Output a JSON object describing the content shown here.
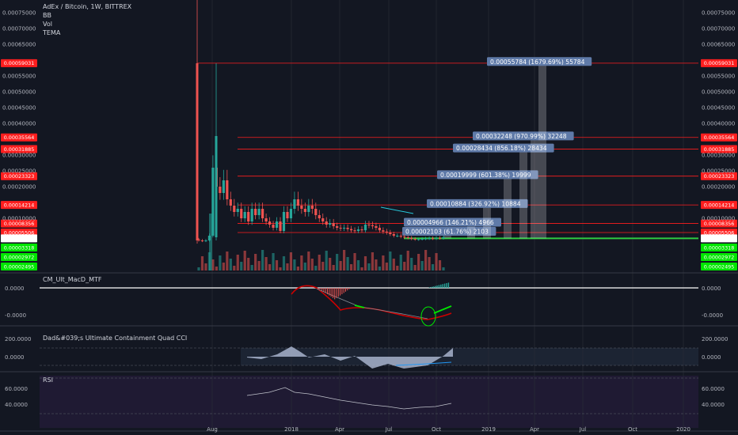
{
  "header": {
    "symbol_line": "AdEx / Bitcoin, 1W, BITTREX",
    "indicators": [
      "BB",
      "Vol",
      "TEMA"
    ]
  },
  "axis_labels": {
    "main_left": [
      "0.00075000",
      "0.00070000",
      "0.00065000",
      "0.00055000",
      "0.00050000",
      "0.00045000",
      "0.00040000",
      "0.00030000",
      "0.00025000",
      "0.00020000",
      "0.00010000"
    ],
    "main_right": [
      "0.00075000",
      "0.00070000",
      "0.00065000",
      "0.00055000",
      "0.00050000",
      "0.00045000",
      "0.00040000",
      "0.00030000",
      "0.00025000",
      "0.00020000",
      "0.00010000"
    ],
    "x_ticks": [
      "Aug",
      "2018",
      "Apr",
      "Jul",
      "Oct",
      "2019",
      "Apr",
      "Jul",
      "Oct",
      "2020"
    ]
  },
  "price_levels": {
    "red": [
      "0.00059031",
      "0.00035564",
      "0.00031885",
      "0.00023323",
      "0.00014214",
      "0.00008356",
      "0.00005506"
    ],
    "white": [
      "0.00003650"
    ],
    "green": [
      "0.00003318",
      "0.00002972",
      "0.00002495"
    ]
  },
  "targets": [
    {
      "text": "0.00002103 (61.76%) 2103",
      "value": 5.753e-05
    },
    {
      "text": "0.00004966 (146.21%) 4966",
      "value": 8.616e-05
    },
    {
      "text": "0.00010884 (326.92%) 10884",
      "value": 0.00014534
    },
    {
      "text": "0.00019999 (601.38%) 19999",
      "value": 0.00023649
    },
    {
      "text": "0.00028434 (856.18%) 28434",
      "value": 0.00032084
    },
    {
      "text": "0.00032248 (970.99%) 32248",
      "value": 0.00035898
    },
    {
      "text": "0.00055784 (1679.69%) 55784",
      "value": 0.00059434
    }
  ],
  "panes": {
    "macd": {
      "title": "CM_Ult_MacD_MTF",
      "left_labels": [
        "0.0000",
        "-0.0000"
      ],
      "right_labels": [
        "0.0000",
        "-0.0000"
      ]
    },
    "cci": {
      "title": "Dad&#039;s Ultimate Containment Quad CCI",
      "left_labels": [
        "200.0000",
        "0.0000"
      ],
      "right_labels": [
        "200.0000",
        "0.0000"
      ]
    },
    "rsi": {
      "title": "RSI",
      "left_labels": [
        "60.0000",
        "40.0000"
      ],
      "right_labels": [
        "60.0000",
        "40.0000"
      ]
    }
  },
  "colors": {
    "bg": "#131722",
    "up": "#26a69a",
    "down": "#ef5350",
    "level_red": "#ff1e1e",
    "level_green": "#2ecc40",
    "target": "#5f7aa8",
    "grid": "#2a2e39"
  },
  "chart_data": [
    {
      "type": "candlestick",
      "title": "AdEx / Bitcoin, 1W, BITTREX",
      "ylim": [
        0,
        0.000775
      ],
      "x_range": [
        "2017-06",
        "2020-03"
      ],
      "close": [
        3e-05,
        2.8e-05,
        3e-05,
        4.5e-05,
        0.00026,
        0.0002,
        0.00018,
        0.00022,
        0.00016,
        0.00014,
        0.00012,
        0.00013,
        0.0001,
        0.00012,
        9e-05,
        0.00013,
        0.00011,
        0.00013,
        0.0001,
        9e-05,
        8e-05,
        7e-05,
        9e-05,
        6e-05,
        0.00012,
        0.0001,
        0.00013,
        0.00016,
        0.00014,
        0.00013,
        0.00012,
        0.00014,
        0.00013,
        0.00011,
        0.0001,
        9e-05,
        8e-05,
        8.5e-05,
        7.5e-05,
        7e-05,
        6.8e-05,
        7e-05,
        6.6e-05,
        6.2e-05,
        6e-05,
        6.5e-05,
        6.2e-05,
        8e-05,
        7.8e-05,
        7.5e-05,
        7e-05,
        6.2e-05,
        5.8e-05,
        5.5e-05,
        5e-05,
        4.5e-05,
        4.5e-05,
        4.2e-05,
        4e-05,
        3.8e-05,
        3.5e-05,
        3.3e-05,
        3.4e-05,
        3.5e-05,
        3.6e-05,
        3.7e-05,
        3.6e-05,
        3.8e-05,
        3.7e-05,
        4e-05
      ],
      "levels": [
        0.00059031,
        0.00035564,
        0.00031885,
        0.00023323,
        0.00014214,
        8.356e-05,
        5.506e-05,
        3.65e-05,
        3.318e-05,
        2.972e-05,
        2.495e-05
      ]
    }
  ]
}
